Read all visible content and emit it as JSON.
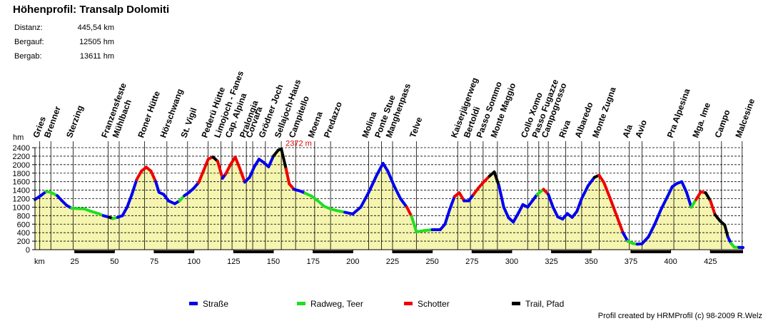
{
  "header": {
    "title": "Höhenprofil:  Transalp Dolomiti",
    "stats": [
      {
        "label": "Distanz:",
        "value": "445,54 km"
      },
      {
        "label": "Bergauf:",
        "value": "12505 hm"
      },
      {
        "label": "Bergab:",
        "value": "13611 hm"
      }
    ]
  },
  "credit": "Profil created by HRMProfil (c) 98-2009 R.Welz",
  "colors": {
    "strasse": "#0000ee",
    "radweg": "#22dd22",
    "schotter": "#ee0000",
    "trail": "#000000",
    "fill": "#f5f5b0",
    "peak_label": "#dd0000"
  },
  "chart_data": {
    "type": "area",
    "title": "Höhenprofil:  Transalp Dolomiti",
    "xlabel": "km",
    "ylabel": "hm",
    "xlim": [
      0,
      445.54
    ],
    "ylim": [
      0,
      2400
    ],
    "grid": true,
    "legend_position": "bottom",
    "y_ticks": [
      0,
      200,
      400,
      600,
      800,
      1000,
      1200,
      1400,
      1600,
      1800,
      2000,
      2200,
      2400
    ],
    "x_ticks": [
      25,
      50,
      75,
      100,
      125,
      150,
      175,
      200,
      225,
      250,
      275,
      300,
      325,
      350,
      375,
      400,
      425
    ],
    "peak_annotation": {
      "label": "2372 m",
      "x": 155,
      "y": 2372
    },
    "legend": [
      {
        "name": "Straße",
        "key": "strasse"
      },
      {
        "name": "Radweg, Teer",
        "key": "radweg"
      },
      {
        "name": "Schotter",
        "key": "schotter"
      },
      {
        "name": "Trail, Pfad",
        "key": "trail"
      }
    ],
    "profile": [
      [
        0,
        1180,
        "strasse"
      ],
      [
        4,
        1280,
        "strasse"
      ],
      [
        7,
        1370,
        "strasse"
      ],
      [
        10,
        1350,
        "radweg"
      ],
      [
        14,
        1270,
        "radweg"
      ],
      [
        17,
        1150,
        "strasse"
      ],
      [
        20,
        1040,
        "strasse"
      ],
      [
        23,
        975,
        "strasse"
      ],
      [
        27,
        965,
        "radweg"
      ],
      [
        31,
        960,
        "radweg"
      ],
      [
        35,
        905,
        "radweg"
      ],
      [
        40,
        850,
        "radweg"
      ],
      [
        43,
        800,
        "radweg"
      ],
      [
        47,
        760,
        "strasse"
      ],
      [
        49,
        730,
        "trail"
      ],
      [
        52,
        760,
        "radweg"
      ],
      [
        55,
        800,
        "strasse"
      ],
      [
        58,
        1000,
        "strasse"
      ],
      [
        61,
        1300,
        "strasse"
      ],
      [
        64,
        1650,
        "strasse"
      ],
      [
        67,
        1850,
        "schotter"
      ],
      [
        70,
        1940,
        "schotter"
      ],
      [
        73,
        1850,
        "schotter"
      ],
      [
        76,
        1600,
        "schotter"
      ],
      [
        78,
        1350,
        "strasse"
      ],
      [
        81,
        1300,
        "strasse"
      ],
      [
        84,
        1150,
        "strasse"
      ],
      [
        88,
        1080,
        "strasse"
      ],
      [
        91,
        1150,
        "strasse"
      ],
      [
        94,
        1270,
        "radweg"
      ],
      [
        97,
        1350,
        "strasse"
      ],
      [
        100,
        1450,
        "strasse"
      ],
      [
        103,
        1580,
        "strasse"
      ],
      [
        106,
        1850,
        "schotter"
      ],
      [
        109,
        2130,
        "schotter"
      ],
      [
        112,
        2180,
        "schotter"
      ],
      [
        115,
        2080,
        "trail"
      ],
      [
        118,
        1680,
        "schotter"
      ],
      [
        120,
        1780,
        "strasse"
      ],
      [
        123,
        2000,
        "schotter"
      ],
      [
        126,
        2180,
        "schotter"
      ],
      [
        129,
        1900,
        "schotter"
      ],
      [
        132,
        1590,
        "schotter"
      ],
      [
        135,
        1700,
        "strasse"
      ],
      [
        138,
        1950,
        "strasse"
      ],
      [
        141,
        2130,
        "strasse"
      ],
      [
        144,
        2050,
        "strasse"
      ],
      [
        147,
        1950,
        "strasse"
      ],
      [
        150,
        2200,
        "strasse"
      ],
      [
        153,
        2340,
        "trail"
      ],
      [
        155,
        2372,
        "trail"
      ],
      [
        158,
        1900,
        "trail"
      ],
      [
        160,
        1550,
        "schotter"
      ],
      [
        163,
        1420,
        "schotter"
      ],
      [
        167,
        1380,
        "strasse"
      ],
      [
        170,
        1330,
        "strasse"
      ],
      [
        174,
        1260,
        "radweg"
      ],
      [
        178,
        1150,
        "radweg"
      ],
      [
        182,
        1020,
        "radweg"
      ],
      [
        186,
        960,
        "radweg"
      ],
      [
        190,
        920,
        "radweg"
      ],
      [
        195,
        880,
        "radweg"
      ],
      [
        200,
        840,
        "strasse"
      ],
      [
        205,
        1000,
        "strasse"
      ],
      [
        210,
        1350,
        "strasse"
      ],
      [
        215,
        1750,
        "strasse"
      ],
      [
        219,
        2030,
        "strasse"
      ],
      [
        222,
        1850,
        "strasse"
      ],
      [
        226,
        1500,
        "strasse"
      ],
      [
        230,
        1200,
        "strasse"
      ],
      [
        234,
        1000,
        "strasse"
      ],
      [
        237,
        780,
        "schotter"
      ],
      [
        240,
        420,
        "radweg"
      ],
      [
        245,
        450,
        "radweg"
      ],
      [
        250,
        470,
        "radweg"
      ],
      [
        255,
        470,
        "strasse"
      ],
      [
        258,
        600,
        "strasse"
      ],
      [
        261,
        950,
        "strasse"
      ],
      [
        264,
        1250,
        "strasse"
      ],
      [
        267,
        1340,
        "schotter"
      ],
      [
        270,
        1150,
        "schotter"
      ],
      [
        273,
        1150,
        "strasse"
      ],
      [
        276,
        1300,
        "strasse"
      ],
      [
        279,
        1450,
        "schotter"
      ],
      [
        282,
        1580,
        "schotter"
      ],
      [
        286,
        1730,
        "schotter"
      ],
      [
        289,
        1830,
        "trail"
      ],
      [
        292,
        1500,
        "trail"
      ],
      [
        295,
        1000,
        "strasse"
      ],
      [
        298,
        750,
        "strasse"
      ],
      [
        301,
        650,
        "strasse"
      ],
      [
        304,
        850,
        "strasse"
      ],
      [
        307,
        1060,
        "strasse"
      ],
      [
        310,
        1000,
        "strasse"
      ],
      [
        313,
        1150,
        "strasse"
      ],
      [
        316,
        1300,
        "strasse"
      ],
      [
        320,
        1420,
        "radweg"
      ],
      [
        323,
        1300,
        "schotter"
      ],
      [
        326,
        1000,
        "strasse"
      ],
      [
        329,
        770,
        "strasse"
      ],
      [
        332,
        720,
        "strasse"
      ],
      [
        335,
        850,
        "strasse"
      ],
      [
        338,
        760,
        "strasse"
      ],
      [
        341,
        900,
        "strasse"
      ],
      [
        344,
        1200,
        "strasse"
      ],
      [
        348,
        1500,
        "strasse"
      ],
      [
        352,
        1700,
        "strasse"
      ],
      [
        355,
        1750,
        "trail"
      ],
      [
        358,
        1580,
        "schotter"
      ],
      [
        362,
        1200,
        "schotter"
      ],
      [
        366,
        800,
        "schotter"
      ],
      [
        370,
        400,
        "schotter"
      ],
      [
        373,
        200,
        "strasse"
      ],
      [
        376,
        150,
        "radweg"
      ],
      [
        379,
        130,
        "radweg"
      ],
      [
        382,
        140,
        "strasse"
      ],
      [
        386,
        300,
        "strasse"
      ],
      [
        390,
        600,
        "strasse"
      ],
      [
        394,
        950,
        "strasse"
      ],
      [
        398,
        1250,
        "strasse"
      ],
      [
        401,
        1480,
        "strasse"
      ],
      [
        404,
        1560,
        "strasse"
      ],
      [
        407,
        1600,
        "strasse"
      ],
      [
        410,
        1350,
        "strasse"
      ],
      [
        413,
        1000,
        "strasse"
      ],
      [
        416,
        1180,
        "radweg"
      ],
      [
        419,
        1360,
        "schotter"
      ],
      [
        422,
        1340,
        "schotter"
      ],
      [
        425,
        1150,
        "trail"
      ],
      [
        428,
        820,
        "schotter"
      ],
      [
        431,
        680,
        "trail"
      ],
      [
        434,
        580,
        "trail"
      ],
      [
        436,
        300,
        "trail"
      ],
      [
        438,
        150,
        "strasse"
      ],
      [
        440,
        60,
        "radweg"
      ],
      [
        443,
        55,
        "radweg"
      ],
      [
        445.54,
        50,
        "strasse"
      ]
    ],
    "waypoints": [
      {
        "name": "Gries",
        "km": 3
      },
      {
        "name": "Brenner",
        "km": 10
      },
      {
        "name": "Sterzing",
        "km": 24
      },
      {
        "name": "Franzensfeste",
        "km": 46
      },
      {
        "name": "Mühlbach",
        "km": 53
      },
      {
        "name": "Roner Hütte",
        "km": 69
      },
      {
        "name": "Hörschwang",
        "km": 83
      },
      {
        "name": "St. Vigil",
        "km": 96
      },
      {
        "name": "Pederü Hütte",
        "km": 109
      },
      {
        "name": "Limojoch - Fanes",
        "km": 117
      },
      {
        "name": "Cap. Alpina",
        "km": 124
      },
      {
        "name": "Pralongia",
        "km": 133
      },
      {
        "name": "Corvara",
        "km": 137
      },
      {
        "name": "Grödner Joch",
        "km": 145
      },
      {
        "name": "Sellajoch-Haus",
        "km": 155
      },
      {
        "name": "Campitello",
        "km": 164
      },
      {
        "name": "Moena",
        "km": 176
      },
      {
        "name": "Predazzo",
        "km": 186
      },
      {
        "name": "Molina",
        "km": 210
      },
      {
        "name": "Ponte Stue",
        "km": 218
      },
      {
        "name": "Manghenpass",
        "km": 225
      },
      {
        "name": "Telve",
        "km": 240
      },
      {
        "name": "Kaiserjägerweg",
        "km": 266
      },
      {
        "name": "Bertoldi",
        "km": 274
      },
      {
        "name": "Passo Sommo",
        "km": 282
      },
      {
        "name": "Monte Maggio",
        "km": 291
      },
      {
        "name": "Collo Xomo",
        "km": 310
      },
      {
        "name": "Passo Fugazze",
        "km": 317
      },
      {
        "name": "Campogrosso",
        "km": 323
      },
      {
        "name": "Riva",
        "km": 334
      },
      {
        "name": "Albaredo",
        "km": 344
      },
      {
        "name": "Monte Zugna",
        "km": 355
      },
      {
        "name": "Ala",
        "km": 374
      },
      {
        "name": "Avio",
        "km": 382
      },
      {
        "name": "Pra Alpesina",
        "km": 402
      },
      {
        "name": "Mga. Ime",
        "km": 418
      },
      {
        "name": "Campo",
        "km": 432
      },
      {
        "name": "Malcesine",
        "km": 445
      }
    ]
  }
}
